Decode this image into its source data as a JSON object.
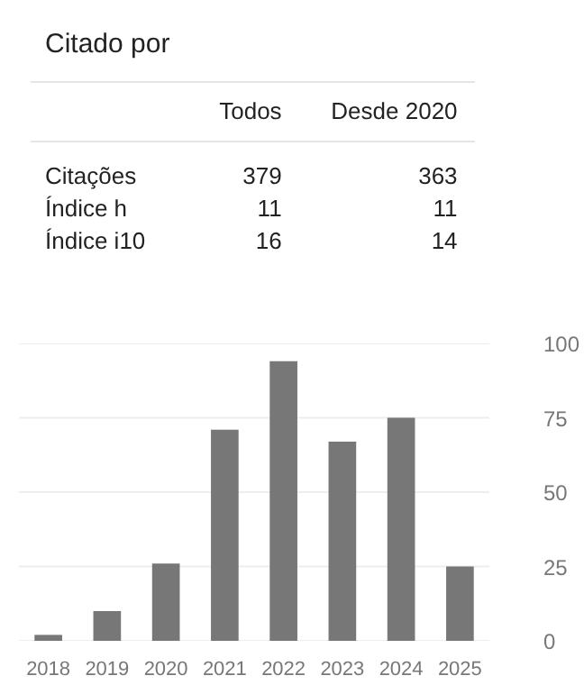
{
  "chart_data": [
    {
      "type": "other",
      "title": "Citado por",
      "categories": [
        "Todos",
        "Desde 2020"
      ],
      "data_labels": true,
      "series": [
        {
          "name": "Citações",
          "values": [
            379,
            363
          ]
        },
        {
          "name": "Índice h",
          "values": [
            11,
            11
          ]
        },
        {
          "name": "Índice i10",
          "values": [
            16,
            14
          ]
        }
      ]
    },
    {
      "type": "bar",
      "categories": [
        "2018",
        "2019",
        "2020",
        "2021",
        "2022",
        "2023",
        "2024",
        "2025"
      ],
      "values": [
        2,
        10,
        26,
        71,
        94,
        67,
        75,
        25
      ],
      "color": "#777777",
      "ylim": [
        0,
        100
      ],
      "yticks": [
        0,
        25,
        50,
        75,
        100
      ],
      "grid": "y"
    }
  ]
}
